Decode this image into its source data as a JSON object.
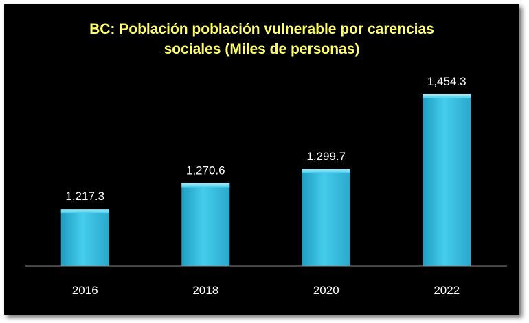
{
  "chart_data": {
    "type": "bar",
    "title": "BC: Población población vulnerable por carencias\nsociales (Miles de personas)",
    "categories": [
      "2016",
      "2018",
      "2020",
      "2022"
    ],
    "values": [
      1217.3,
      1270.6,
      1299.7,
      1454.3
    ],
    "data_labels": [
      "1,217.3",
      "1,270.6",
      "1,299.7",
      "1,454.3"
    ],
    "xlabel": "",
    "ylabel": "",
    "ylim": [
      1100,
      1500
    ],
    "grid": false,
    "legend": "none"
  },
  "colors": {
    "background": "#000000",
    "title": "#ffff66",
    "bar": "#3cc4e6",
    "bar_top": "#7fe0f5",
    "text": "#ffffff",
    "axis": "#8a8a8a"
  }
}
